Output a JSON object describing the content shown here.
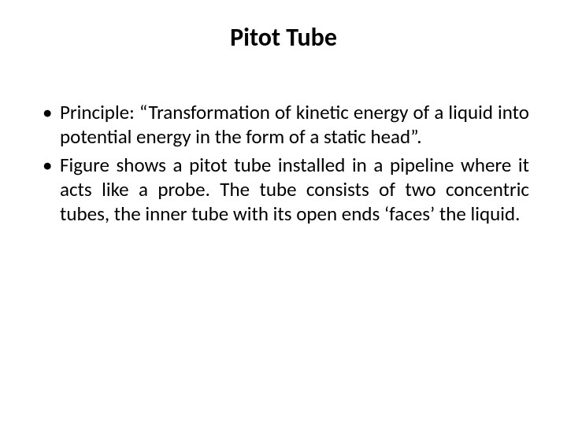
{
  "slide": {
    "title": "Pitot Tube",
    "bullets": [
      "Principle: “Transformation of kinetic energy of a liquid into potential energy in the form of a static head”.",
      "Figure shows a pitot tube installed in a pipeline where it acts like a probe. The tube consists of two concentric tubes, the inner tube with its open ends ‘faces’ the liquid."
    ]
  },
  "style": {
    "background_color": "#ffffff",
    "text_color": "#000000",
    "title_fontsize": 32,
    "title_weight": "bold",
    "body_fontsize": 25,
    "line_height": 1.25,
    "text_align": "justify",
    "font_family": "Calibri"
  }
}
